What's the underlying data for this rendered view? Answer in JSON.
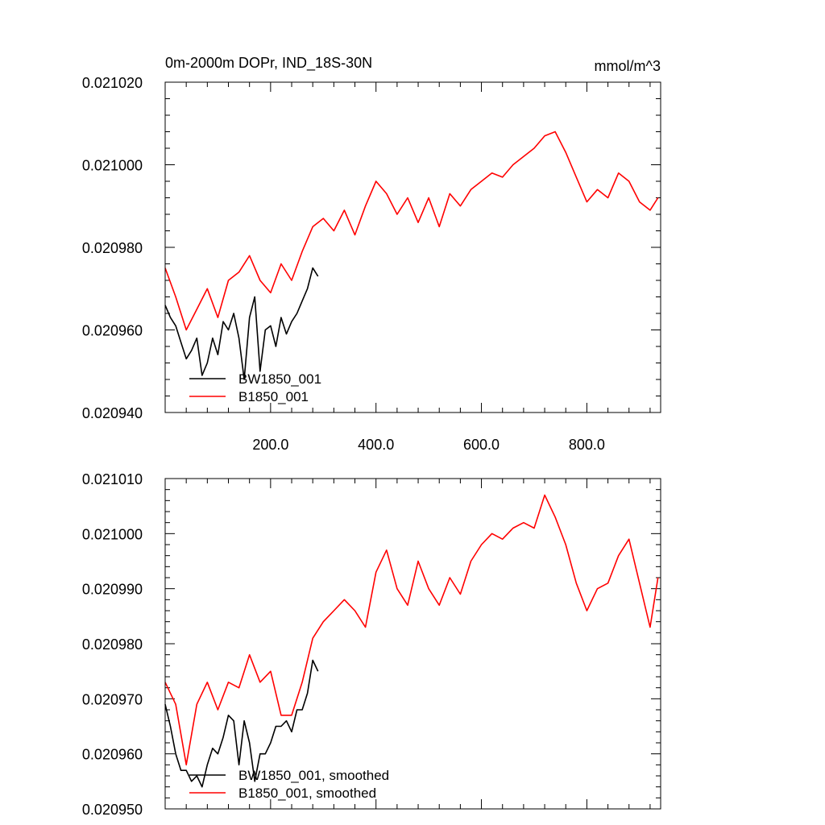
{
  "chart_data": [
    {
      "type": "line",
      "title": "0m-2000m DOPr, IND_18S-30N",
      "units": "mmol/m^3",
      "xlim": [
        0,
        940
      ],
      "ylim": [
        0.02094,
        0.02102
      ],
      "x_tick_labels": [
        "200.0",
        "400.0",
        "600.0",
        "800.0"
      ],
      "y_tick_labels": [
        "0.021020",
        "0.021000",
        "0.020980",
        "0.020960",
        "0.020940"
      ],
      "legend_position": "bottom-left",
      "series": [
        {
          "name": "BW1850_001",
          "color": "#000000",
          "x": [
            0,
            10,
            20,
            30,
            40,
            50,
            60,
            70,
            80,
            90,
            100,
            110,
            120,
            130,
            140,
            150,
            160,
            170,
            180,
            190,
            200,
            210,
            220,
            230,
            240,
            250,
            260,
            270,
            280,
            290
          ],
          "y": [
            0.020966,
            0.020963,
            0.020961,
            0.020957,
            0.020953,
            0.020955,
            0.020958,
            0.020949,
            0.020952,
            0.020958,
            0.020954,
            0.020962,
            0.02096,
            0.020964,
            0.020958,
            0.020948,
            0.020963,
            0.020968,
            0.02095,
            0.02096,
            0.020961,
            0.020956,
            0.020963,
            0.020959,
            0.020962,
            0.020964,
            0.020967,
            0.02097,
            0.020975,
            0.020973
          ]
        },
        {
          "name": "B1850_001",
          "color": "#ff0000",
          "x": [
            0,
            20,
            40,
            60,
            80,
            100,
            120,
            140,
            160,
            180,
            200,
            220,
            240,
            260,
            280,
            300,
            320,
            340,
            360,
            380,
            400,
            420,
            440,
            460,
            480,
            500,
            520,
            540,
            560,
            580,
            600,
            620,
            640,
            660,
            680,
            700,
            720,
            740,
            760,
            780,
            800,
            820,
            840,
            860,
            880,
            900,
            920,
            935
          ],
          "y": [
            0.020975,
            0.020968,
            0.02096,
            0.020965,
            0.02097,
            0.020963,
            0.020972,
            0.020974,
            0.020978,
            0.020972,
            0.020969,
            0.020976,
            0.020972,
            0.020979,
            0.020985,
            0.020987,
            0.020984,
            0.020989,
            0.020983,
            0.02099,
            0.020996,
            0.020993,
            0.020988,
            0.020992,
            0.020986,
            0.020992,
            0.020985,
            0.020993,
            0.02099,
            0.020994,
            0.020996,
            0.020998,
            0.020997,
            0.021,
            0.021002,
            0.021004,
            0.021007,
            0.021008,
            0.021003,
            0.020997,
            0.020991,
            0.020994,
            0.020992,
            0.020998,
            0.020996,
            0.020991,
            0.020989,
            0.020992
          ]
        }
      ]
    },
    {
      "type": "line",
      "title": "",
      "xlim": [
        0,
        940
      ],
      "ylim": [
        0.02095,
        0.02101
      ],
      "y_tick_labels": [
        "0.021010",
        "0.021000",
        "0.020990",
        "0.020980",
        "0.020970",
        "0.020960",
        "0.020950"
      ],
      "legend_position": "bottom-left",
      "series": [
        {
          "name": "BW1850_001, smoothed",
          "color": "#000000",
          "x": [
            0,
            10,
            20,
            30,
            40,
            50,
            60,
            70,
            80,
            90,
            100,
            110,
            120,
            130,
            140,
            150,
            160,
            170,
            180,
            190,
            200,
            210,
            220,
            230,
            240,
            250,
            260,
            270,
            280,
            290
          ],
          "y": [
            0.020969,
            0.020965,
            0.02096,
            0.020957,
            0.020957,
            0.020955,
            0.020956,
            0.020954,
            0.020958,
            0.020961,
            0.02096,
            0.020963,
            0.020967,
            0.020966,
            0.020958,
            0.020966,
            0.020962,
            0.020955,
            0.02096,
            0.02096,
            0.020962,
            0.020965,
            0.020965,
            0.020966,
            0.020964,
            0.020968,
            0.020968,
            0.020971,
            0.020977,
            0.020975
          ]
        },
        {
          "name": "B1850_001, smoothed",
          "color": "#ff0000",
          "x": [
            0,
            20,
            40,
            60,
            80,
            100,
            120,
            140,
            160,
            180,
            200,
            220,
            240,
            260,
            280,
            300,
            320,
            340,
            360,
            380,
            400,
            420,
            440,
            460,
            480,
            500,
            520,
            540,
            560,
            580,
            600,
            620,
            640,
            660,
            680,
            700,
            720,
            740,
            760,
            780,
            800,
            820,
            840,
            860,
            880,
            900,
            920,
            935
          ],
          "y": [
            0.020973,
            0.020969,
            0.020958,
            0.020969,
            0.020973,
            0.020968,
            0.020973,
            0.020972,
            0.020978,
            0.020973,
            0.020975,
            0.020967,
            0.020967,
            0.020973,
            0.020981,
            0.020984,
            0.020986,
            0.020988,
            0.020986,
            0.020983,
            0.020993,
            0.020997,
            0.02099,
            0.020987,
            0.020995,
            0.02099,
            0.020987,
            0.020992,
            0.020989,
            0.020995,
            0.020998,
            0.021,
            0.020999,
            0.021001,
            0.021002,
            0.021001,
            0.021007,
            0.021003,
            0.020998,
            0.020991,
            0.020986,
            0.02099,
            0.020991,
            0.020996,
            0.020999,
            0.020991,
            0.020983,
            0.020992
          ]
        }
      ]
    }
  ]
}
